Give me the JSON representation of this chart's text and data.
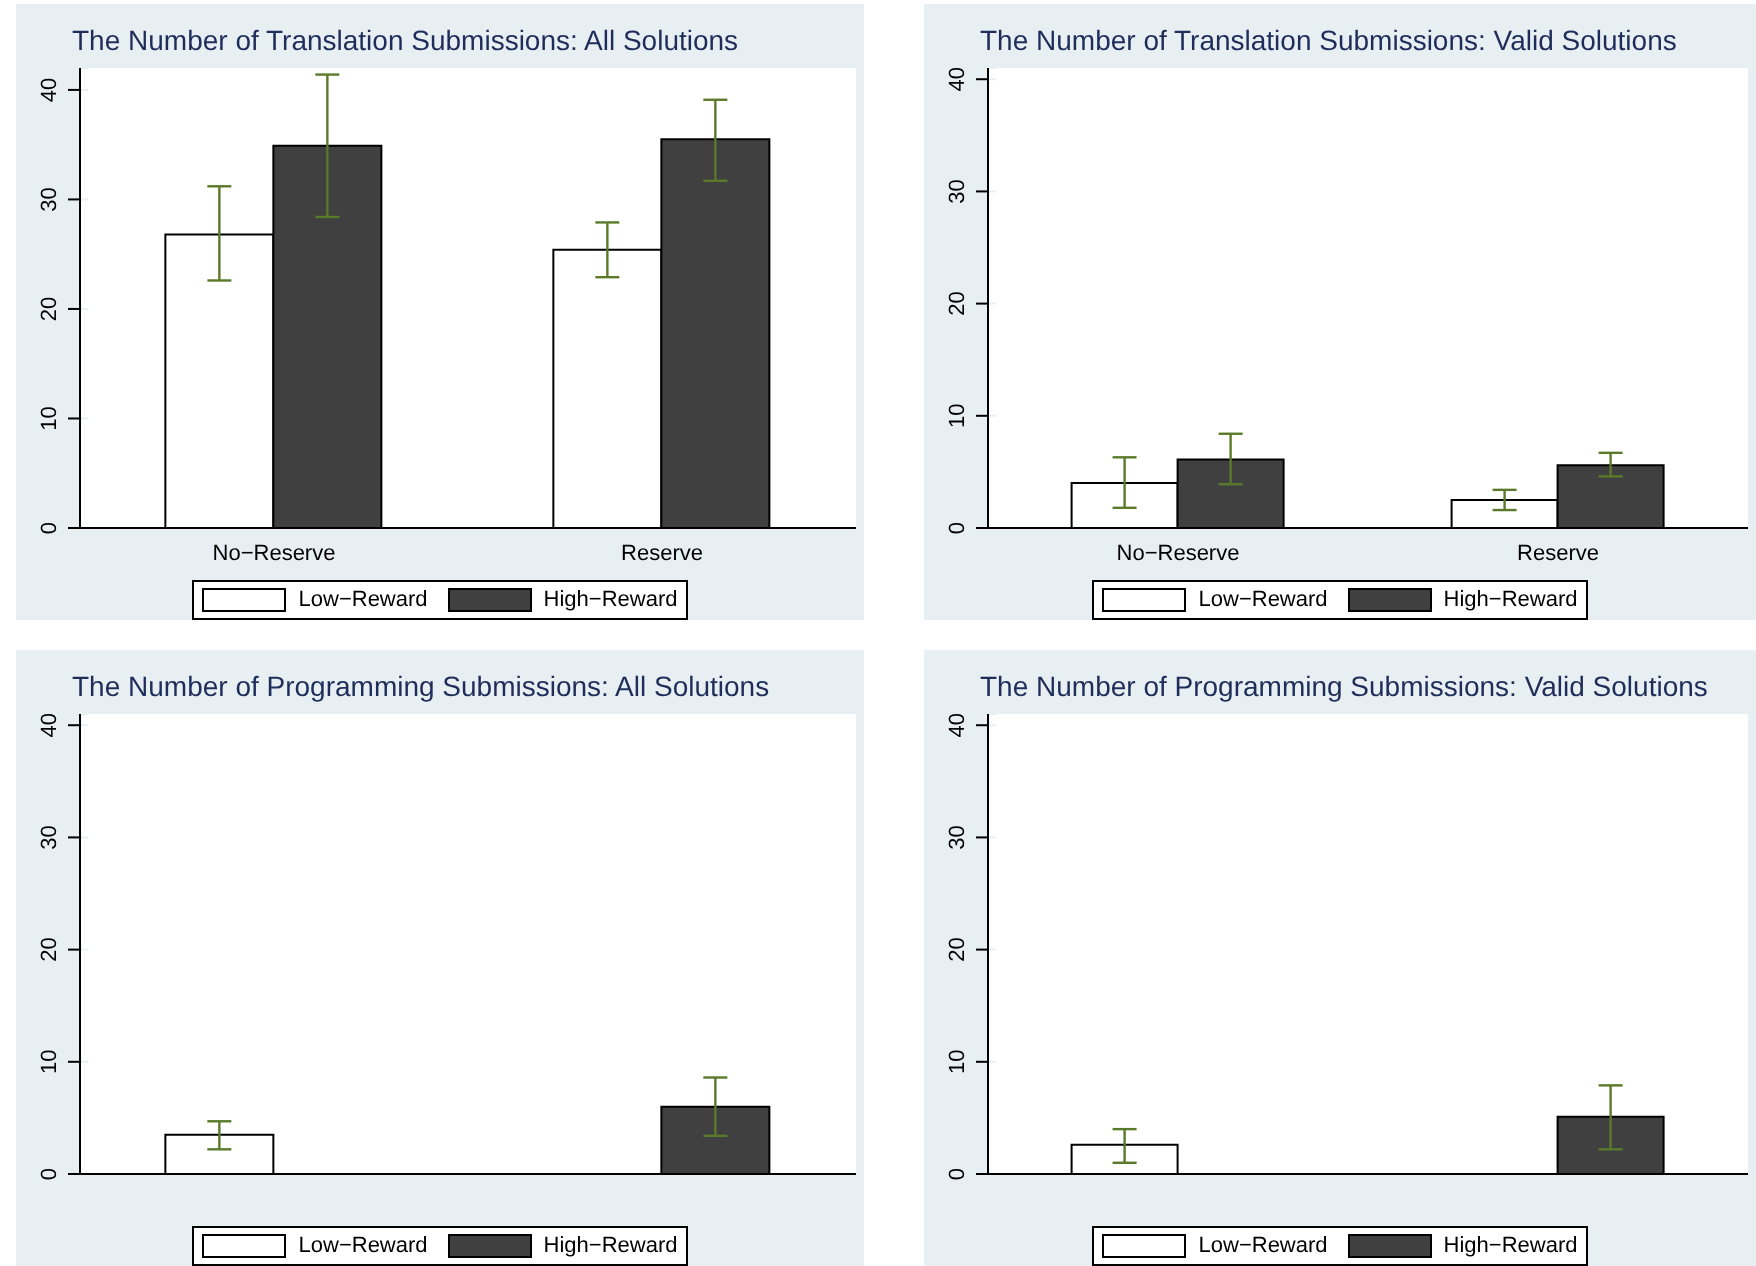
{
  "chart_data": [
    {
      "type": "bar",
      "title": "The Number of Translation Submissions: All Solutions",
      "categories": [
        "No−Reserve",
        "Reserve"
      ],
      "series": [
        {
          "name": "Low−Reward",
          "color": "#ffffff",
          "values": [
            26.8,
            25.4
          ],
          "errors": [
            [
              22.6,
              31.2
            ],
            [
              22.9,
              27.9
            ]
          ]
        },
        {
          "name": "High−Reward",
          "color": "#404040",
          "values": [
            34.9,
            35.5
          ],
          "errors": [
            [
              28.4,
              41.4
            ],
            [
              31.7,
              39.1
            ]
          ]
        }
      ],
      "ylim": [
        0,
        42
      ],
      "yticks": [
        0,
        10,
        20,
        30,
        40
      ],
      "grid": "y",
      "legend": "bottom"
    },
    {
      "type": "bar",
      "title": "The Number of Translation Submissions: Valid Solutions",
      "categories": [
        "No−Reserve",
        "Reserve"
      ],
      "series": [
        {
          "name": "Low−Reward",
          "color": "#ffffff",
          "values": [
            4.0,
            2.5
          ],
          "errors": [
            [
              1.8,
              6.3
            ],
            [
              1.6,
              3.4
            ]
          ]
        },
        {
          "name": "High−Reward",
          "color": "#404040",
          "values": [
            6.1,
            5.6
          ],
          "errors": [
            [
              3.9,
              8.4
            ],
            [
              4.6,
              6.7
            ]
          ]
        }
      ],
      "ylim": [
        0,
        41
      ],
      "yticks": [
        0,
        10,
        20,
        30,
        40
      ],
      "grid": "y",
      "legend": "bottom"
    },
    {
      "type": "bar",
      "title": "The Number of Programming Submissions: All Solutions",
      "categories": [
        null,
        null
      ],
      "series": [
        {
          "name": "Low−Reward",
          "color": "#ffffff",
          "values": [
            3.5,
            null
          ],
          "errors": [
            [
              2.2,
              4.7
            ],
            null
          ]
        },
        {
          "name": "High−Reward",
          "color": "#404040",
          "values": [
            null,
            6.0
          ],
          "errors": [
            null,
            [
              3.4,
              8.6
            ]
          ]
        }
      ],
      "ylim": [
        0,
        41
      ],
      "yticks": [
        0,
        10,
        20,
        30,
        40
      ],
      "grid": "y",
      "legend": "bottom",
      "tick_labels": "y"
    },
    {
      "type": "bar",
      "title": "The Number of Programming Submissions: Valid Solutions",
      "categories": [
        null,
        null
      ],
      "series": [
        {
          "name": "Low−Reward",
          "color": "#ffffff",
          "values": [
            2.6,
            null
          ],
          "errors": [
            [
              1.0,
              4.0
            ],
            null
          ]
        },
        {
          "name": "High−Reward",
          "color": "#404040",
          "values": [
            null,
            5.1
          ],
          "errors": [
            null,
            [
              2.2,
              7.9
            ]
          ]
        }
      ],
      "ylim": [
        0,
        41
      ],
      "yticks": [
        0,
        10,
        20,
        30,
        40
      ],
      "grid": "y",
      "legend": "bottom",
      "tick_labels": "y"
    }
  ]
}
